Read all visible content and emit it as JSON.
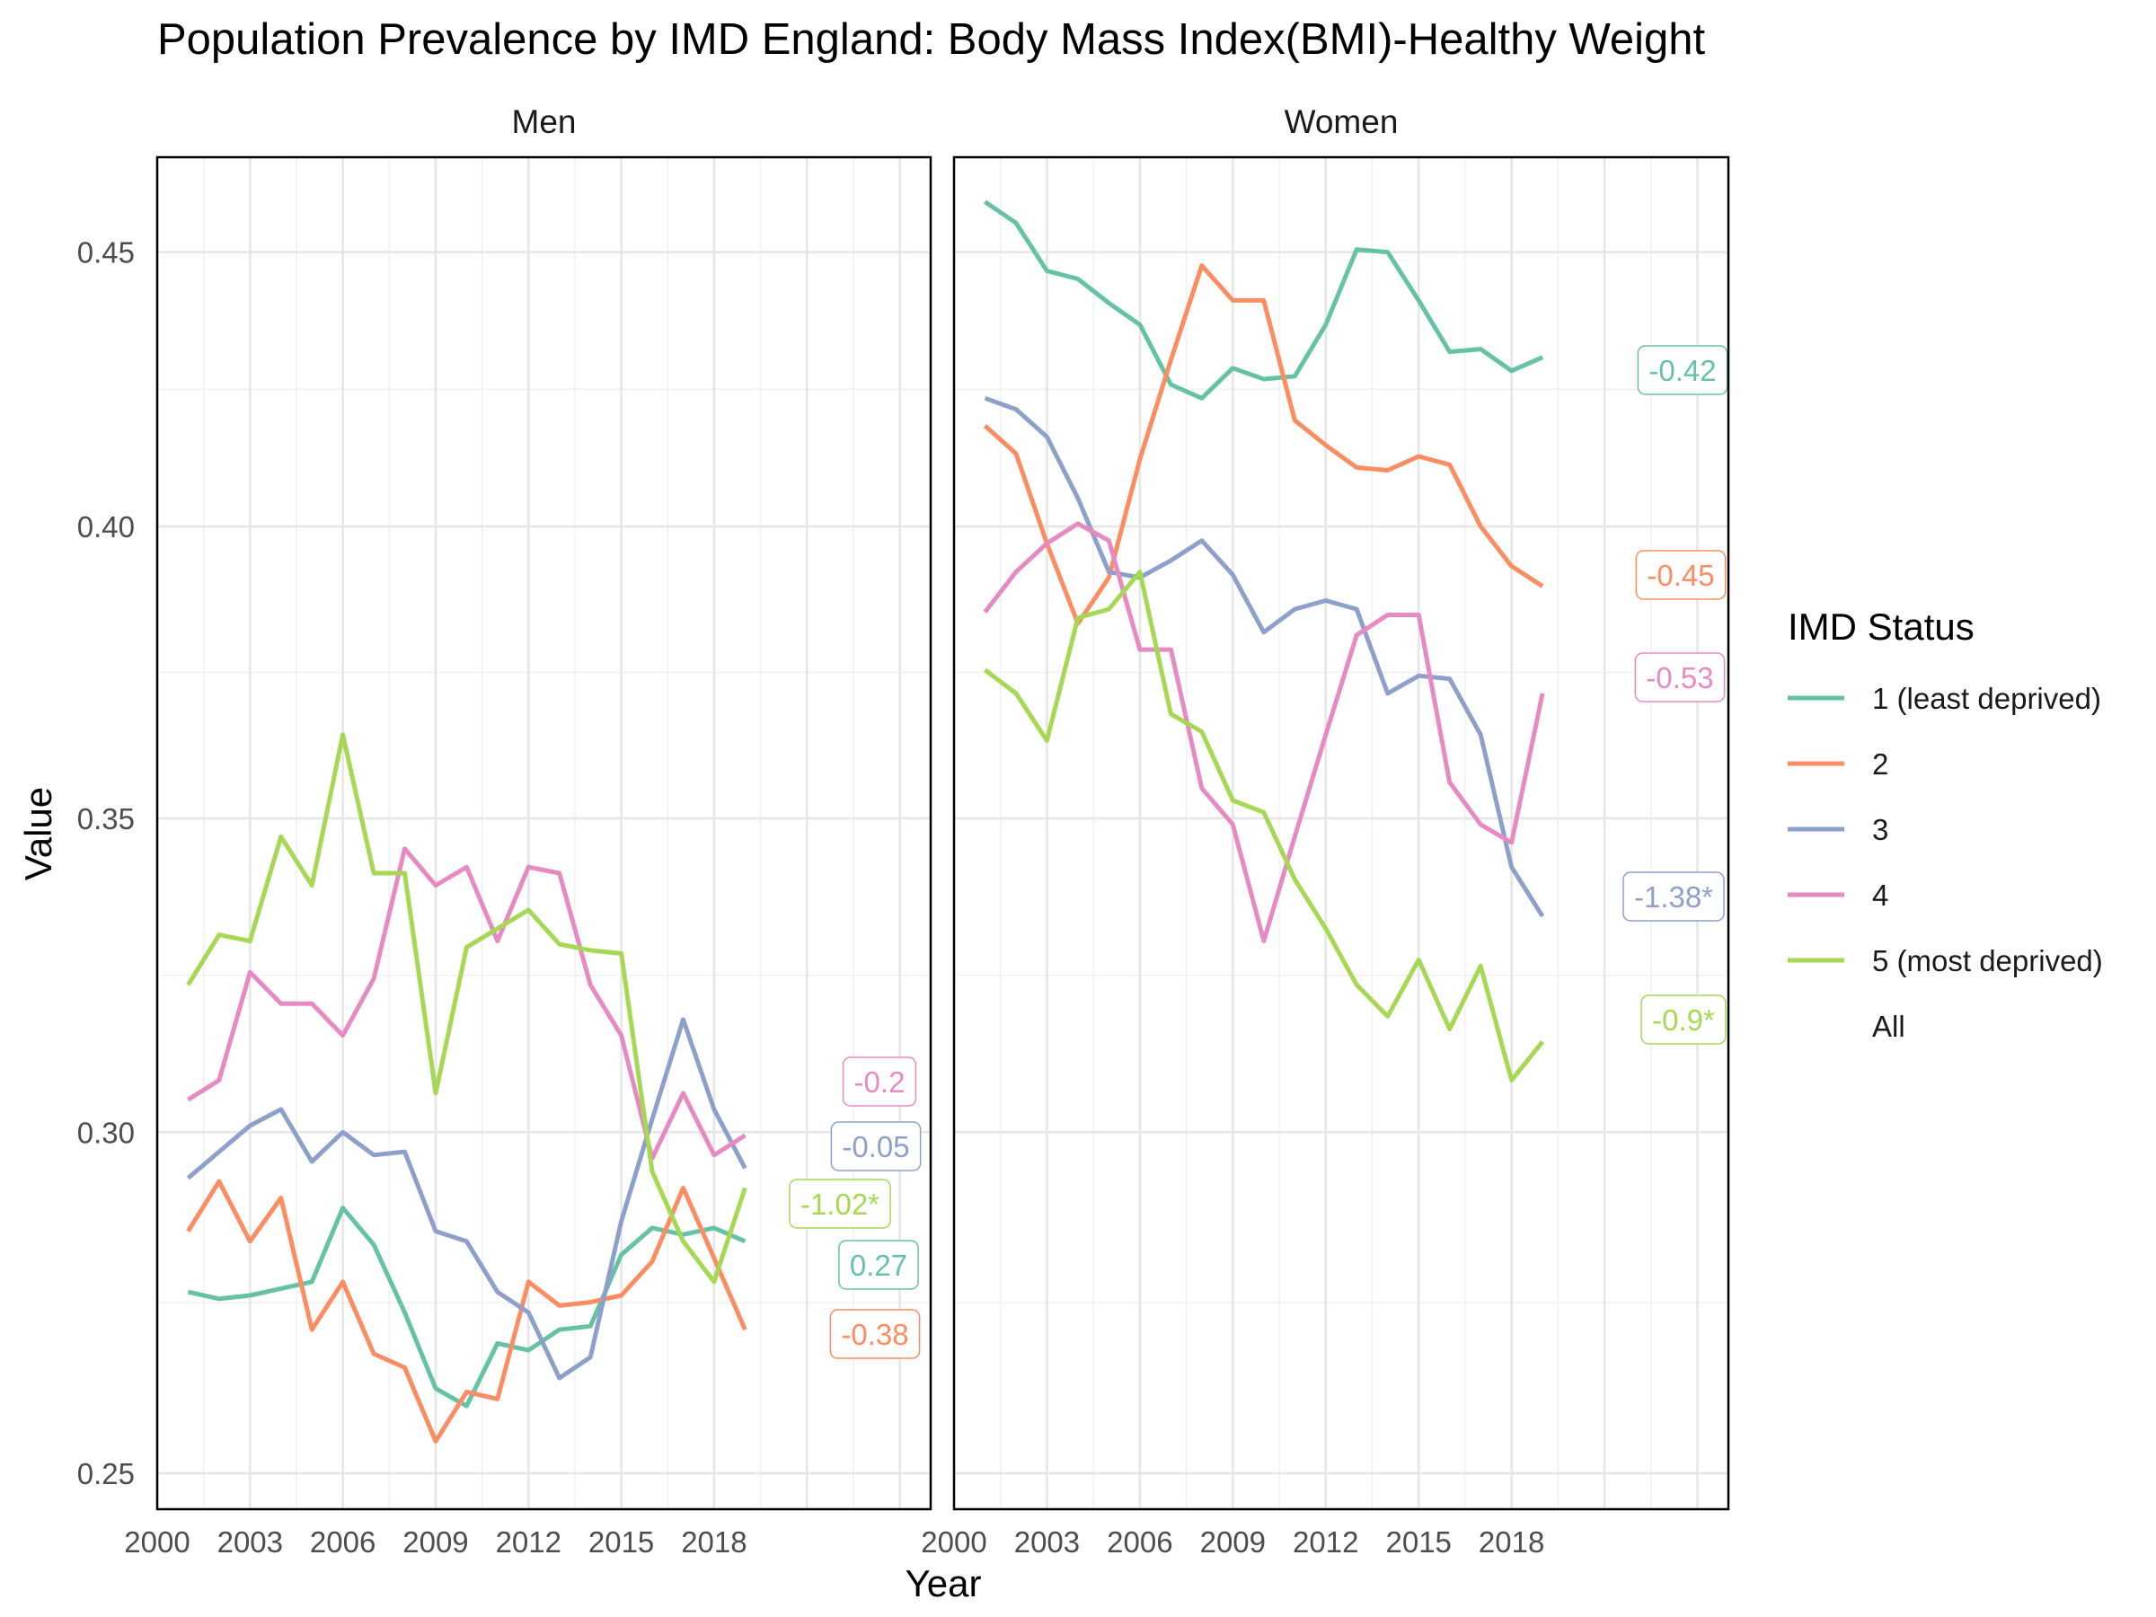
{
  "chart_data": {
    "type": "line",
    "title": "Population Prevalence by IMD England: Body Mass Index(BMI)-Healthy Weight",
    "xlabel": "Year",
    "ylabel": "Value",
    "x_ticks": [
      2000,
      2003,
      2006,
      2009,
      2012,
      2015,
      2018
    ],
    "xlim": [
      2000,
      2025
    ],
    "y_ticks": [
      "0.25",
      "0.30",
      "0.35",
      "0.40",
      "0.45"
    ],
    "ylim": [
      0.245,
      0.468
    ],
    "y_scale": "sqrt",
    "grid": true,
    "legend": {
      "title": "IMD Status",
      "position": "right",
      "entries": [
        {
          "label": "1 (least deprived)",
          "color": "#66c2a5"
        },
        {
          "label": "2",
          "color": "#fc8d62"
        },
        {
          "label": "3",
          "color": "#8da0cb"
        },
        {
          "label": "4",
          "color": "#e78ac3"
        },
        {
          "label": "5 (most deprived)",
          "color": "#a6d854"
        },
        {
          "label": "All",
          "color": ""
        }
      ]
    },
    "x": [
      2001,
      2002,
      2003,
      2004,
      2005,
      2006,
      2007,
      2008,
      2009,
      2010,
      2011,
      2012,
      2013,
      2014,
      2015,
      2016,
      2017,
      2018,
      2019
    ],
    "panels": [
      {
        "name": "Men",
        "series": [
          {
            "name": "1 (least deprived)",
            "color": "#66c2a5",
            "values": [
              0.276,
              0.275,
              0.2755,
              0.2765,
              0.2775,
              0.2885,
              0.283,
              0.273,
              0.262,
              0.2595,
              0.2685,
              0.2675,
              0.2705,
              0.271,
              0.2815,
              0.2855,
              0.2845,
              0.2855,
              0.2835
            ],
            "label": "0.27"
          },
          {
            "name": "2",
            "color": "#fc8d62",
            "values": [
              0.285,
              0.2925,
              0.2835,
              0.29,
              0.2705,
              0.2775,
              0.267,
              0.265,
              0.2545,
              0.2615,
              0.2605,
              0.2775,
              0.274,
              0.2745,
              0.2755,
              0.2805,
              0.2915,
              0.281,
              0.2705
            ],
            "label": "-0.38"
          },
          {
            "name": "3",
            "color": "#8da0cb",
            "values": [
              0.293,
              0.297,
              0.301,
              0.3035,
              0.2955,
              0.3,
              0.2965,
              0.297,
              0.285,
              0.2835,
              0.276,
              0.273,
              0.2635,
              0.2665,
              0.2865,
              0.302,
              0.3175,
              0.3035,
              0.2945
            ],
            "label": "-0.05"
          },
          {
            "name": "4",
            "color": "#e78ac3",
            "values": [
              0.305,
              0.308,
              0.325,
              0.32,
              0.32,
              0.315,
              0.324,
              0.345,
              0.339,
              0.342,
              0.33,
              0.342,
              0.341,
              0.323,
              0.315,
              0.296,
              0.306,
              0.2965,
              0.2995
            ],
            "label": "-0.2"
          },
          {
            "name": "5 (most deprived)",
            "color": "#a6d854",
            "values": [
              0.323,
              0.331,
              0.33,
              0.347,
              0.339,
              0.364,
              0.341,
              0.341,
              0.306,
              0.329,
              0.332,
              0.335,
              0.3295,
              0.3285,
              0.328,
              0.294,
              0.2835,
              0.2775,
              0.2915
            ],
            "label": "-1.02*"
          }
        ]
      },
      {
        "name": "Women",
        "series": [
          {
            "name": "1 (least deprived)",
            "color": "#66c2a5",
            "values": [
              0.4595,
              0.4555,
              0.4465,
              0.445,
              0.4405,
              0.4365,
              0.4255,
              0.423,
              0.4285,
              0.4265,
              0.427,
              0.4365,
              0.4505,
              0.45,
              0.441,
              0.4315,
              0.432,
              0.428,
              0.4305
            ],
            "label": "-0.42"
          },
          {
            "name": "2",
            "color": "#fc8d62",
            "values": [
              0.418,
              0.413,
              0.397,
              0.383,
              0.391,
              0.412,
              0.43,
              0.4475,
              0.441,
              0.441,
              0.419,
              0.4145,
              0.4105,
              0.41,
              0.4125,
              0.411,
              0.4,
              0.393,
              0.3895
            ],
            "label": "-0.45"
          },
          {
            "name": "3",
            "color": "#8da0cb",
            "values": [
              0.423,
              0.421,
              0.416,
              0.405,
              0.392,
              0.391,
              0.394,
              0.3975,
              0.3915,
              0.3815,
              0.3855,
              0.387,
              0.3855,
              0.371,
              0.374,
              0.3735,
              0.364,
              0.342,
              0.334
            ],
            "label": "-1.38*"
          },
          {
            "name": "4",
            "color": "#e78ac3",
            "values": [
              0.385,
              0.392,
              0.397,
              0.4005,
              0.3975,
              0.3785,
              0.3785,
              0.355,
              0.349,
              0.33,
              0.347,
              0.364,
              0.381,
              0.3845,
              0.3845,
              0.356,
              0.349,
              0.346,
              0.371
            ],
            "label": "-0.53"
          },
          {
            "name": "5 (most deprived)",
            "color": "#a6d854",
            "values": [
              0.375,
              0.371,
              0.363,
              0.384,
              0.3855,
              0.392,
              0.3675,
              0.3645,
              0.353,
              0.351,
              0.34,
              0.332,
              0.323,
              0.318,
              0.327,
              0.316,
              0.326,
              0.308,
              0.314
            ],
            "label": "-0.9*"
          }
        ]
      }
    ]
  }
}
